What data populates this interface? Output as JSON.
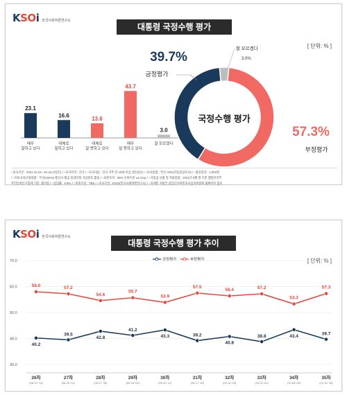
{
  "logo": {
    "mark_k": "K",
    "mark_so": "SO",
    "mark_i": "i",
    "subtitle": "한국사회여론연구소"
  },
  "panel1": {
    "title": "대통령 국정수행 평가",
    "unit": "[ 단위: % ]",
    "donut_center": "국정수행 평가",
    "positive_pct": "39.7%",
    "positive_label": "긍정평가",
    "negative_pct": "57.3%",
    "negative_label": "부정평가",
    "unknown_label": "잘 모르겠다",
    "unknown_pct": "3.0%",
    "footnote_line1": "○조사기간 : 2021.10.15.~10.16.(2일간)  / ○조사지역 : 전국  / ○조사대상 : 전국 거주 만 18세 이상 성인남녀  / ○조사방법 : 무선 ARS(자동응답조사)  / ○총응답자 : 1,003명",
    "footnote_line2": "/ ○피조사자선정방법 : 무선(100%)-통신사 제공 휴대전화 가상번호 활용  / ○표본오차 : 95% 신뢰수준 ±3.1%p  / ○가중값 산출 및 적용방법 : 2021년 9월 말 기준 행정안전부",
    "footnote_line3": "주민등록인구통계 기준, 셀가중  / ○응답률 : 6.8%  / ○의뢰기관 : TBS  / ○조사기관 : KSOI(한국사회여론연구소)  / ○자세한 사항은 중앙선거여론조사심의위원회 홈페이지 참조"
  },
  "panel2": {
    "title": "대통령 국정수행 평가 추이",
    "unit": "[ 단위: % ]"
  },
  "chart_data": [
    {
      "type": "bar",
      "categories": [
        [
          "매우",
          "잘하고 있다"
        ],
        [
          "대체로",
          "잘하고 있다"
        ],
        [
          "대체로",
          "잘 못하고 있다"
        ],
        [
          "매우",
          "잘 못하고 있다"
        ],
        [
          "잘 모르겠다"
        ]
      ],
      "values": [
        23.1,
        16.6,
        13.6,
        43.7,
        3.0
      ],
      "value_labels": [
        "23.1",
        "16.6",
        "13.6",
        "43.7",
        "3.0"
      ],
      "colors": [
        "#1a3a5c",
        "#1a3a5c",
        "#f06a63",
        "#f06a63",
        "#bdbdbd"
      ]
    },
    {
      "type": "pie",
      "categories": [
        "긍정평가",
        "부정평가",
        "잘 모르겠다"
      ],
      "values": [
        39.7,
        57.3,
        3.0
      ],
      "colors": [
        "#1a3a5c",
        "#f06a63",
        "#bdbdbd"
      ]
    },
    {
      "type": "line",
      "x": [
        "26차",
        "27차",
        "28차",
        "29차",
        "30차",
        "31차",
        "32차",
        "33차",
        "34차",
        "35차"
      ],
      "x_dates": [
        "(08.13~14)",
        "(08.20~21)",
        "(08.27~28)",
        "(09.03~04)",
        "(09.10~11)",
        "(09.17~18)",
        "(09.24~25)",
        "(10.01~02)",
        "(10.08~09)",
        "(10.15~16)"
      ],
      "series": [
        {
          "name": "긍정평가",
          "color": "#1a3a5c",
          "values": [
            40.2,
            39.5,
            42.8,
            41.2,
            43.3,
            39.2,
            40.8,
            38.8,
            43.4,
            39.7
          ],
          "labels": [
            "40.2",
            "39.5",
            "42.8",
            "41.2",
            "43.3",
            "39.2",
            "40.8",
            "38.8",
            "43.4",
            "39.7"
          ]
        },
        {
          "name": "부정평가",
          "color": "#e8463b",
          "values": [
            58.0,
            57.2,
            54.6,
            55.7,
            53.9,
            57.5,
            56.4,
            57.2,
            53.3,
            57.3
          ],
          "labels": [
            "58.0",
            "57.2",
            "54.6",
            "55.7",
            "53.9",
            "57.5",
            "56.4",
            "57.2",
            "53.3",
            "57.3"
          ]
        }
      ],
      "yticks": [
        "70.0",
        "60.0",
        "50.0",
        "40.0",
        "30.0"
      ],
      "ylim": [
        30,
        70
      ],
      "grid": true,
      "legend": "top-center"
    }
  ]
}
